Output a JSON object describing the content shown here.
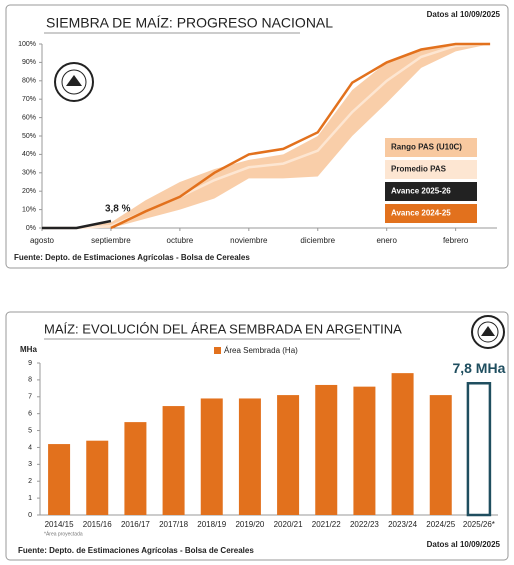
{
  "chart_data": [
    {
      "type": "line",
      "title": "SIEMBRA DE MAÍZ: PROGRESO NACIONAL",
      "date_note": "Datos al 10/09/2025",
      "source": "Fuente: Depto. de Estimaciones Agrícolas - Bolsa de Cereales",
      "annotation": "3,8 %",
      "x": [
        0,
        0.5,
        1,
        1.5,
        2,
        2.5,
        3,
        3.5,
        4,
        4.5,
        5,
        5.5,
        6,
        6.5
      ],
      "xlim": [
        0,
        6.6
      ],
      "xticks": [
        {
          "value": 0,
          "label": "agosto"
        },
        {
          "value": 1,
          "label": "septiembre"
        },
        {
          "value": 2,
          "label": "octubre"
        },
        {
          "value": 3,
          "label": "noviembre"
        },
        {
          "value": 4,
          "label": "diciembre"
        },
        {
          "value": 5,
          "label": "enero"
        },
        {
          "value": 6,
          "label": "febrero"
        }
      ],
      "ylim": [
        0,
        100
      ],
      "yticks": [
        {
          "value": 0,
          "label": "0%"
        },
        {
          "value": 10,
          "label": "10%"
        },
        {
          "value": 20,
          "label": "20%"
        },
        {
          "value": 30,
          "label": "30%"
        },
        {
          "value": 40,
          "label": "40%"
        },
        {
          "value": 50,
          "label": "50%"
        },
        {
          "value": 60,
          "label": "60%"
        },
        {
          "value": 70,
          "label": "70%"
        },
        {
          "value": 80,
          "label": "80%"
        },
        {
          "value": 90,
          "label": "90%"
        },
        {
          "value": 100,
          "label": "100%"
        }
      ],
      "series": [
        {
          "name": "Rango PAS (U10C)",
          "color": "#f8c9a0",
          "high": [
            0,
            0,
            3,
            15,
            25,
            32,
            37,
            40,
            50,
            75,
            90,
            97,
            100,
            100
          ],
          "low": [
            0,
            0,
            0,
            5,
            10,
            16,
            27,
            27,
            28,
            50,
            68,
            87,
            96,
            100
          ]
        },
        {
          "name": "Promedio PAS",
          "color": "#fde6d2",
          "values": [
            0,
            0,
            1,
            9,
            17,
            26,
            33,
            35,
            42,
            63,
            80,
            93,
            99,
            100
          ]
        },
        {
          "name": "Avance 2025-26",
          "color": "#222222",
          "values": [
            0,
            0,
            3.8,
            null,
            null,
            null,
            null,
            null,
            null,
            null,
            null,
            null,
            null,
            null
          ]
        },
        {
          "name": "Avance 2024-25",
          "color": "#e2711d",
          "values": [
            null,
            null,
            0,
            9,
            17,
            30,
            40,
            43,
            52,
            79,
            90,
            97,
            100,
            100
          ]
        }
      ]
    },
    {
      "type": "bar",
      "title": "MAÍZ: EVOLUCIÓN DEL ÁREA SEMBRADA EN ARGENTINA",
      "y_label": "MHa",
      "annotation": "7,8 MHa",
      "footnote": "*Área proyectada",
      "source": "Fuente: Depto. de Estimaciones Agrícolas - Bolsa de Cereales",
      "date_note": "Datos al 10/09/2025",
      "categories": [
        "2014/15",
        "2015/16",
        "2016/17",
        "2017/18",
        "2018/19",
        "2019/20",
        "2020/21",
        "2021/22",
        "2022/23",
        "2023/24",
        "2024/25",
        "2025/26*"
      ],
      "series": [
        {
          "name": "Área Sembrada (Ha)",
          "color": "#e2711d",
          "values": [
            4.2,
            4.4,
            5.5,
            6.45,
            6.9,
            6.9,
            7.1,
            7.7,
            7.6,
            8.4,
            7.1,
            7.8
          ]
        }
      ],
      "bar_styles": [
        "fill",
        "fill",
        "fill",
        "fill",
        "fill",
        "fill",
        "fill",
        "fill",
        "fill",
        "fill",
        "fill",
        "outline"
      ],
      "outline_color": "#1f4e5f",
      "ylim": [
        0,
        9
      ],
      "yticks": [
        0,
        1,
        2,
        3,
        4,
        5,
        6,
        7,
        8,
        9
      ]
    }
  ]
}
